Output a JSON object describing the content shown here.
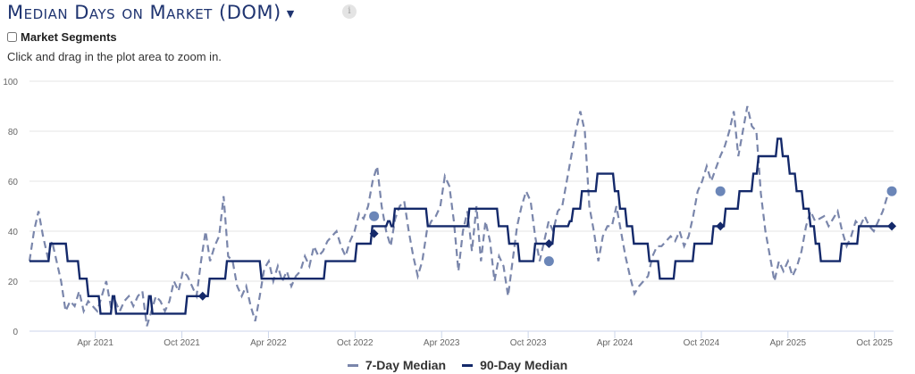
{
  "header": {
    "title": "Median Days on Market (DOM)",
    "info_icon": "i"
  },
  "controls": {
    "segments_label": "Market Segments",
    "segments_checked": false,
    "hint": "Click and drag in the plot area to zoom in."
  },
  "chart_data": {
    "type": "line",
    "title": "Median Days on Market (DOM)",
    "xlabel": "",
    "ylabel": "",
    "xlim": [
      2020.87,
      2025.86
    ],
    "ylim": [
      0,
      100
    ],
    "yticks": [
      0,
      20,
      40,
      60,
      80,
      100
    ],
    "xticks": [
      {
        "x": 2021.25,
        "label": "Apr 2021"
      },
      {
        "x": 2021.75,
        "label": "Oct 2021"
      },
      {
        "x": 2022.25,
        "label": "Apr 2022"
      },
      {
        "x": 2022.75,
        "label": "Oct 2022"
      },
      {
        "x": 2023.25,
        "label": "Apr 2023"
      },
      {
        "x": 2023.75,
        "label": "Oct 2023"
      },
      {
        "x": 2024.25,
        "label": "Apr 2024"
      },
      {
        "x": 2024.75,
        "label": "Oct 2024"
      },
      {
        "x": 2025.25,
        "label": "Apr 2025"
      },
      {
        "x": 2025.75,
        "label": "Oct 2025"
      }
    ],
    "grid": true,
    "legend": "bottom-center",
    "series": [
      {
        "name": "7-Day Median",
        "color": "#7a86ab",
        "style": "dashed",
        "x_start": 2020.87,
        "x_end": 2025.85,
        "values": [
          28,
          40,
          48,
          38,
          30,
          36,
          28,
          20,
          8,
          12,
          10,
          16,
          8,
          12,
          10,
          8,
          14,
          20,
          10,
          12,
          8,
          12,
          14,
          10,
          14,
          16,
          2,
          8,
          14,
          12,
          8,
          12,
          20,
          16,
          24,
          22,
          18,
          14,
          28,
          40,
          28,
          34,
          38,
          54,
          30,
          28,
          18,
          14,
          18,
          10,
          4,
          14,
          25,
          28,
          20,
          26,
          20,
          24,
          18,
          22,
          24,
          30,
          26,
          34,
          30,
          32,
          36,
          38,
          40,
          34,
          30,
          36,
          40,
          47,
          45,
          50,
          60,
          66,
          50,
          40,
          34,
          45,
          50,
          52,
          40,
          30,
          22,
          28,
          40,
          44,
          46,
          50,
          62,
          58,
          44,
          24,
          40,
          48,
          32,
          50,
          28,
          44,
          36,
          20,
          30,
          26,
          14,
          28,
          42,
          50,
          56,
          52,
          38,
          28,
          36,
          44,
          40,
          48,
          50,
          60,
          70,
          80,
          88,
          80,
          50,
          40,
          28,
          38,
          42,
          42,
          50,
          40,
          30,
          22,
          15,
          18,
          20,
          22,
          30,
          34,
          34,
          36,
          38,
          36,
          40,
          34,
          38,
          46,
          56,
          60,
          66,
          60,
          65,
          70,
          74,
          80,
          88,
          70,
          80,
          90,
          82,
          80,
          55,
          40,
          30,
          20,
          28,
          24,
          28,
          22,
          26,
          32,
          42,
          48,
          44,
          45,
          46,
          42,
          45,
          48,
          40,
          34,
          38,
          44,
          42,
          46,
          42,
          40,
          44,
          48,
          54,
          56
        ],
        "markers": [
          {
            "x": 2022.86,
            "y": 46
          },
          {
            "x": 2023.87,
            "y": 28
          },
          {
            "x": 2024.86,
            "y": 56
          },
          {
            "x": 2025.85,
            "y": 56
          }
        ]
      },
      {
        "name": "90-Day Median",
        "color": "#14296a",
        "style": "step",
        "points": [
          [
            2020.87,
            28
          ],
          [
            2020.98,
            35
          ],
          [
            2021.08,
            28
          ],
          [
            2021.15,
            21
          ],
          [
            2021.2,
            14
          ],
          [
            2021.27,
            7
          ],
          [
            2021.34,
            14
          ],
          [
            2021.36,
            7
          ],
          [
            2021.55,
            14
          ],
          [
            2021.57,
            7
          ],
          [
            2021.77,
            14
          ],
          [
            2021.9,
            21
          ],
          [
            2022.0,
            28
          ],
          [
            2022.2,
            21
          ],
          [
            2022.57,
            28
          ],
          [
            2022.75,
            35
          ],
          [
            2022.84,
            42
          ],
          [
            2022.93,
            44
          ],
          [
            2022.95,
            42
          ],
          [
            2022.97,
            49
          ],
          [
            2023.16,
            42
          ],
          [
            2023.4,
            49
          ],
          [
            2023.57,
            42
          ],
          [
            2023.63,
            35
          ],
          [
            2023.69,
            28
          ],
          [
            2023.78,
            35
          ],
          [
            2023.89,
            42
          ],
          [
            2023.98,
            44
          ],
          [
            2024.0,
            49
          ],
          [
            2024.05,
            56
          ],
          [
            2024.14,
            63
          ],
          [
            2024.24,
            56
          ],
          [
            2024.27,
            49
          ],
          [
            2024.31,
            42
          ],
          [
            2024.35,
            35
          ],
          [
            2024.44,
            28
          ],
          [
            2024.5,
            21
          ],
          [
            2024.59,
            28
          ],
          [
            2024.7,
            35
          ],
          [
            2024.81,
            42
          ],
          [
            2024.88,
            49
          ],
          [
            2024.96,
            56
          ],
          [
            2025.04,
            63
          ],
          [
            2025.07,
            70
          ],
          [
            2025.18,
            77
          ],
          [
            2025.21,
            70
          ],
          [
            2025.25,
            63
          ],
          [
            2025.29,
            56
          ],
          [
            2025.33,
            49
          ],
          [
            2025.37,
            42
          ],
          [
            2025.4,
            35
          ],
          [
            2025.43,
            28
          ],
          [
            2025.55,
            35
          ],
          [
            2025.65,
            42
          ],
          [
            2025.85,
            42
          ]
        ],
        "markers": [
          {
            "x": 2021.87,
            "y": 14
          },
          {
            "x": 2022.86,
            "y": 39
          },
          {
            "x": 2023.87,
            "y": 35
          },
          {
            "x": 2024.86,
            "y": 42
          },
          {
            "x": 2025.85,
            "y": 42
          }
        ]
      }
    ]
  }
}
